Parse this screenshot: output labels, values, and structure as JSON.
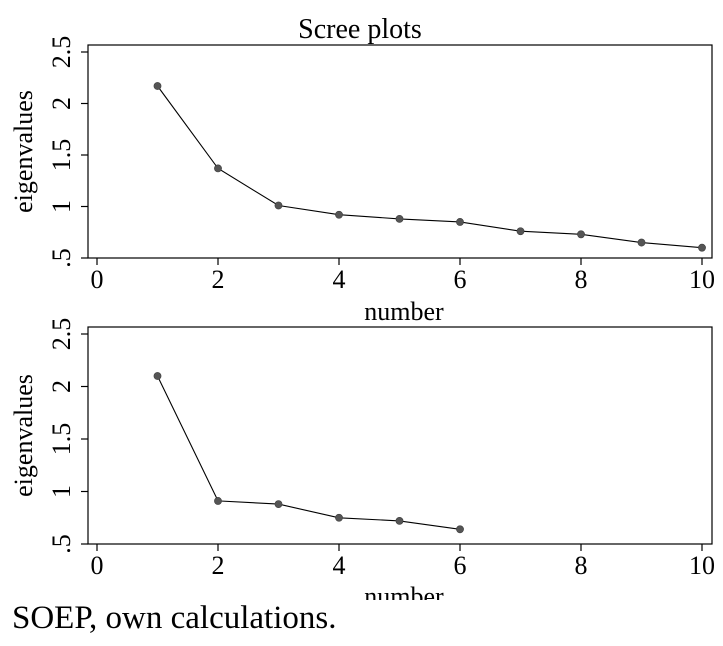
{
  "title": "Scree plots",
  "source_note": "SOEP, own calculations.",
  "chart_data": [
    {
      "type": "line",
      "title": "Scree plots",
      "xlabel": "number",
      "ylabel": "eigenvalues",
      "xlim": [
        0,
        10
      ],
      "ylim": [
        0.5,
        2.5
      ],
      "x_ticks": [
        0,
        2,
        4,
        6,
        8,
        10
      ],
      "x_tick_labels": [
        "0",
        "2",
        "4",
        "6",
        "8",
        "10"
      ],
      "y_ticks": [
        0.5,
        1,
        1.5,
        2,
        2.5
      ],
      "y_tick_labels": [
        ".5",
        "1",
        "1.5",
        "2",
        "2.5"
      ],
      "grid": false,
      "series": [
        {
          "x": [
            1,
            2,
            3,
            4,
            5,
            6,
            7,
            8,
            9,
            10
          ],
          "values": [
            2.17,
            1.37,
            1.01,
            0.92,
            0.88,
            0.85,
            0.76,
            0.73,
            0.65,
            0.6
          ]
        }
      ]
    },
    {
      "type": "line",
      "title": "",
      "xlabel": "number",
      "ylabel": "eigenvalues",
      "xlim": [
        0,
        10
      ],
      "ylim": [
        0.5,
        2.5
      ],
      "x_ticks": [
        0,
        2,
        4,
        6,
        8,
        10
      ],
      "x_tick_labels": [
        "0",
        "2",
        "4",
        "6",
        "8",
        "10"
      ],
      "y_ticks": [
        0.5,
        1,
        1.5,
        2,
        2.5
      ],
      "y_tick_labels": [
        ".5",
        "1",
        "1.5",
        "2",
        "2.5"
      ],
      "grid": false,
      "series": [
        {
          "x": [
            1,
            2,
            3,
            4,
            5,
            6
          ],
          "values": [
            2.1,
            0.91,
            0.88,
            0.75,
            0.72,
            0.64
          ]
        }
      ]
    }
  ]
}
